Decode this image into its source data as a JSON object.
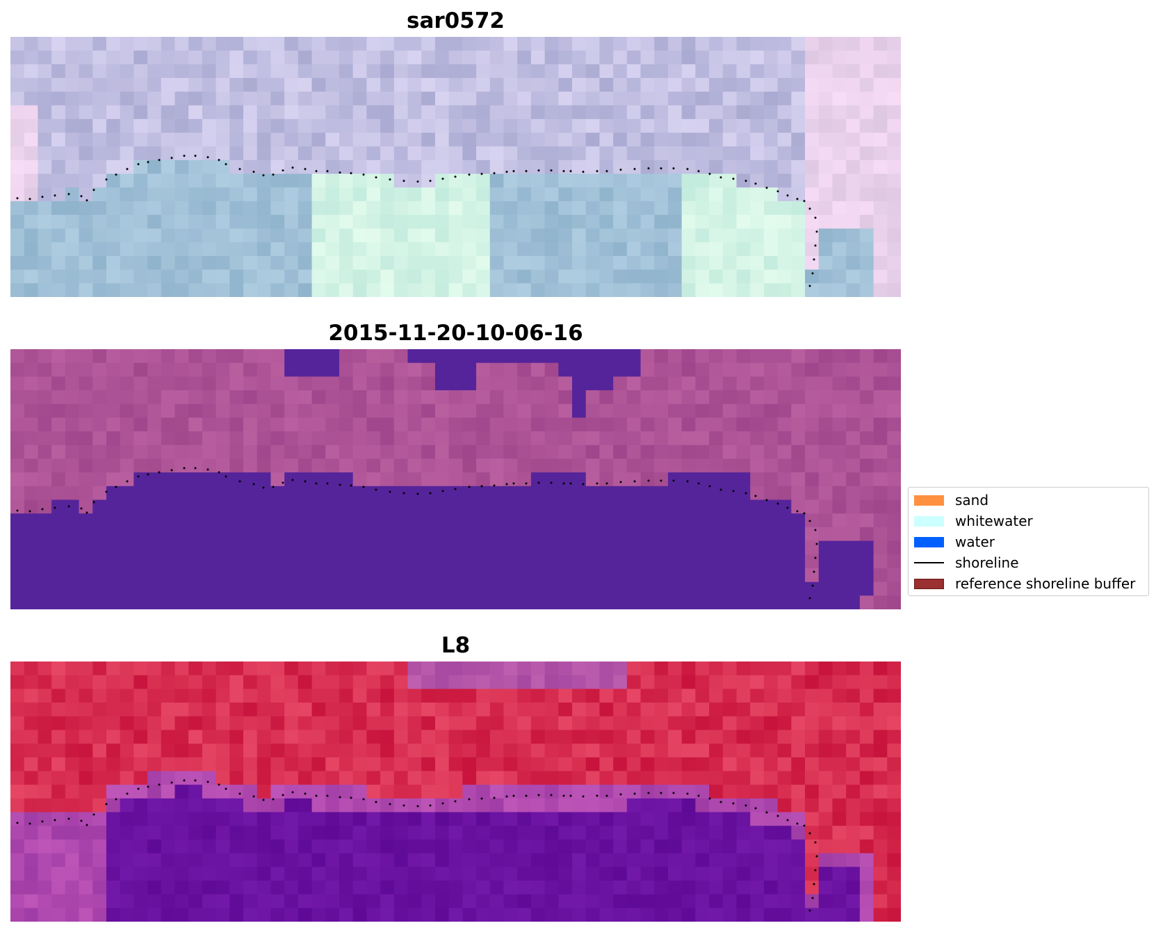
{
  "panels": [
    {
      "title": "sar0572",
      "style": "rgb"
    },
    {
      "title": "2015-11-20-10-06-16",
      "style": "classified"
    },
    {
      "title": "L8",
      "style": "index"
    }
  ],
  "legend": {
    "items": [
      {
        "label": "sand",
        "color": "#ff9040",
        "kind": "patch"
      },
      {
        "label": "whitewater",
        "color": "#ccffff",
        "kind": "patch"
      },
      {
        "label": "water",
        "color": "#0060ff",
        "kind": "patch"
      },
      {
        "label": "shoreline",
        "color": "#000000",
        "kind": "line"
      },
      {
        "label": "reference shoreline buffer",
        "color": "#9a3030",
        "kind": "patch"
      }
    ]
  },
  "colors": {
    "water_mask": "#55249a",
    "shoreline_points": "#000000",
    "legend_border": "#cccccc",
    "legend_buffer_edge": "#6a1a1a"
  }
}
